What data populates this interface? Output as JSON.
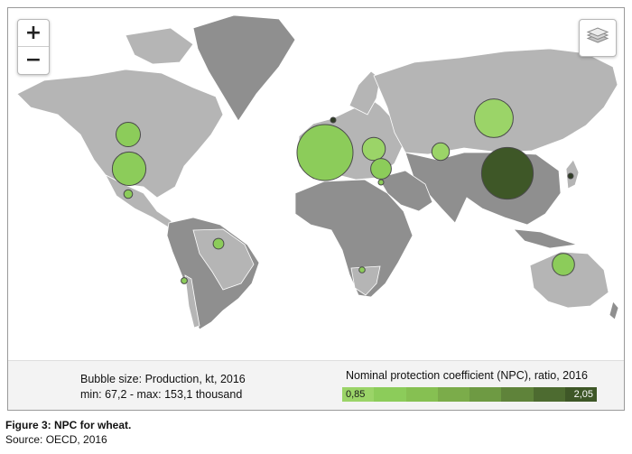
{
  "map": {
    "zoom_in_label": "+",
    "zoom_out_label": "−",
    "layers_control_icon": "layers-icon",
    "ocean_color": "#ffffff",
    "land_color": "#b5b5b5",
    "no_data_color": "#8f8f8f",
    "bubble_data": [
      {
        "region": "Canada",
        "production_kt": 29000,
        "npc": 1.0
      },
      {
        "region": "United States",
        "production_kt": 55000,
        "npc": 1.0
      },
      {
        "region": "Mexico",
        "production_kt": 3700,
        "npc": 1.0
      },
      {
        "region": "Brazil",
        "production_kt": 5600,
        "npc": 1.0
      },
      {
        "region": "Chile",
        "production_kt": 1800,
        "npc": 1.03
      },
      {
        "region": "European Union",
        "production_kt": 153100,
        "npc": 1.0
      },
      {
        "region": "Norway",
        "production_kt": 67.2,
        "npc": 2.05
      },
      {
        "region": "Ukraine",
        "production_kt": 26000,
        "npc": 0.95
      },
      {
        "region": "Turkey",
        "production_kt": 20600,
        "npc": 1.1
      },
      {
        "region": "Israel",
        "production_kt": 120,
        "npc": 1.0
      },
      {
        "region": "Kazakhstan",
        "production_kt": 15000,
        "npc": 0.96
      },
      {
        "region": "Russia",
        "production_kt": 73000,
        "npc": 0.9
      },
      {
        "region": "China",
        "production_kt": 130000,
        "npc": 1.9
      },
      {
        "region": "Japan",
        "production_kt": 800,
        "npc": 2.0
      },
      {
        "region": "South Africa",
        "production_kt": 1700,
        "npc": 1.0
      },
      {
        "region": "Australia",
        "production_kt": 24000,
        "npc": 1.0
      }
    ]
  },
  "legend": {
    "bubble_size_line": "Bubble size: Production, kt, 2016",
    "bubble_range_line": "min: 67,2 - max: 153,1 thousand",
    "npc_title": "Nominal protection coefficient (NPC), ratio, 2016",
    "npc_min_label": "0,85",
    "npc_max_label": "2,05",
    "npc_scale_colors": [
      "#9bd468",
      "#8ccc5a",
      "#86c052",
      "#7bac4a",
      "#6e9a43",
      "#5f833a",
      "#4d6b30",
      "#3e5727"
    ]
  },
  "caption": {
    "figure_title": "Figure 3: NPC for wheat.",
    "source": "Source: OECD, 2016"
  }
}
